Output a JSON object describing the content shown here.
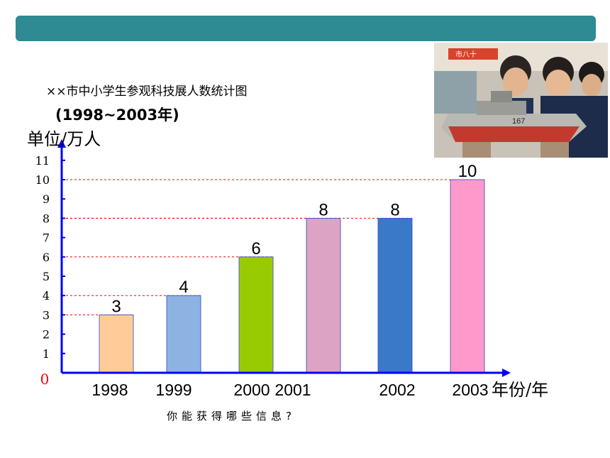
{
  "header": {
    "bar_color": "#2e8a93"
  },
  "title": {
    "line1": "××市中小学生参观科技展人数统计图",
    "line2": "(1998~2003年)"
  },
  "photo": {
    "caption_number": "167",
    "banner_text": "市八十"
  },
  "question": "你能获得哪些信息?",
  "chart_data": {
    "type": "bar",
    "title": "××市中小学生参观科技展人数统计图 (1998~2003年)",
    "ylabel": "单位/万人",
    "xlabel": "年份/年",
    "origin_label": "0",
    "ylim": [
      0,
      11
    ],
    "yticks": [
      1,
      2,
      3,
      4,
      5,
      6,
      7,
      8,
      9,
      10,
      11
    ],
    "categories": [
      "1998",
      "1999",
      "2000",
      "2001",
      "2002",
      "2003"
    ],
    "values": [
      3,
      4,
      6,
      8,
      8,
      10
    ],
    "data_labels": [
      "3",
      "4",
      "6",
      "8",
      "8",
      "10"
    ],
    "colors": [
      "#ffcc99",
      "#8db3e2",
      "#99cc00",
      "#dda3c4",
      "#3a78c8",
      "#ff99cc"
    ],
    "axis_color": "#0000ff",
    "guide_color": "#ff0000",
    "origin_color": "#ff0000",
    "grid": false,
    "legend": "none"
  }
}
